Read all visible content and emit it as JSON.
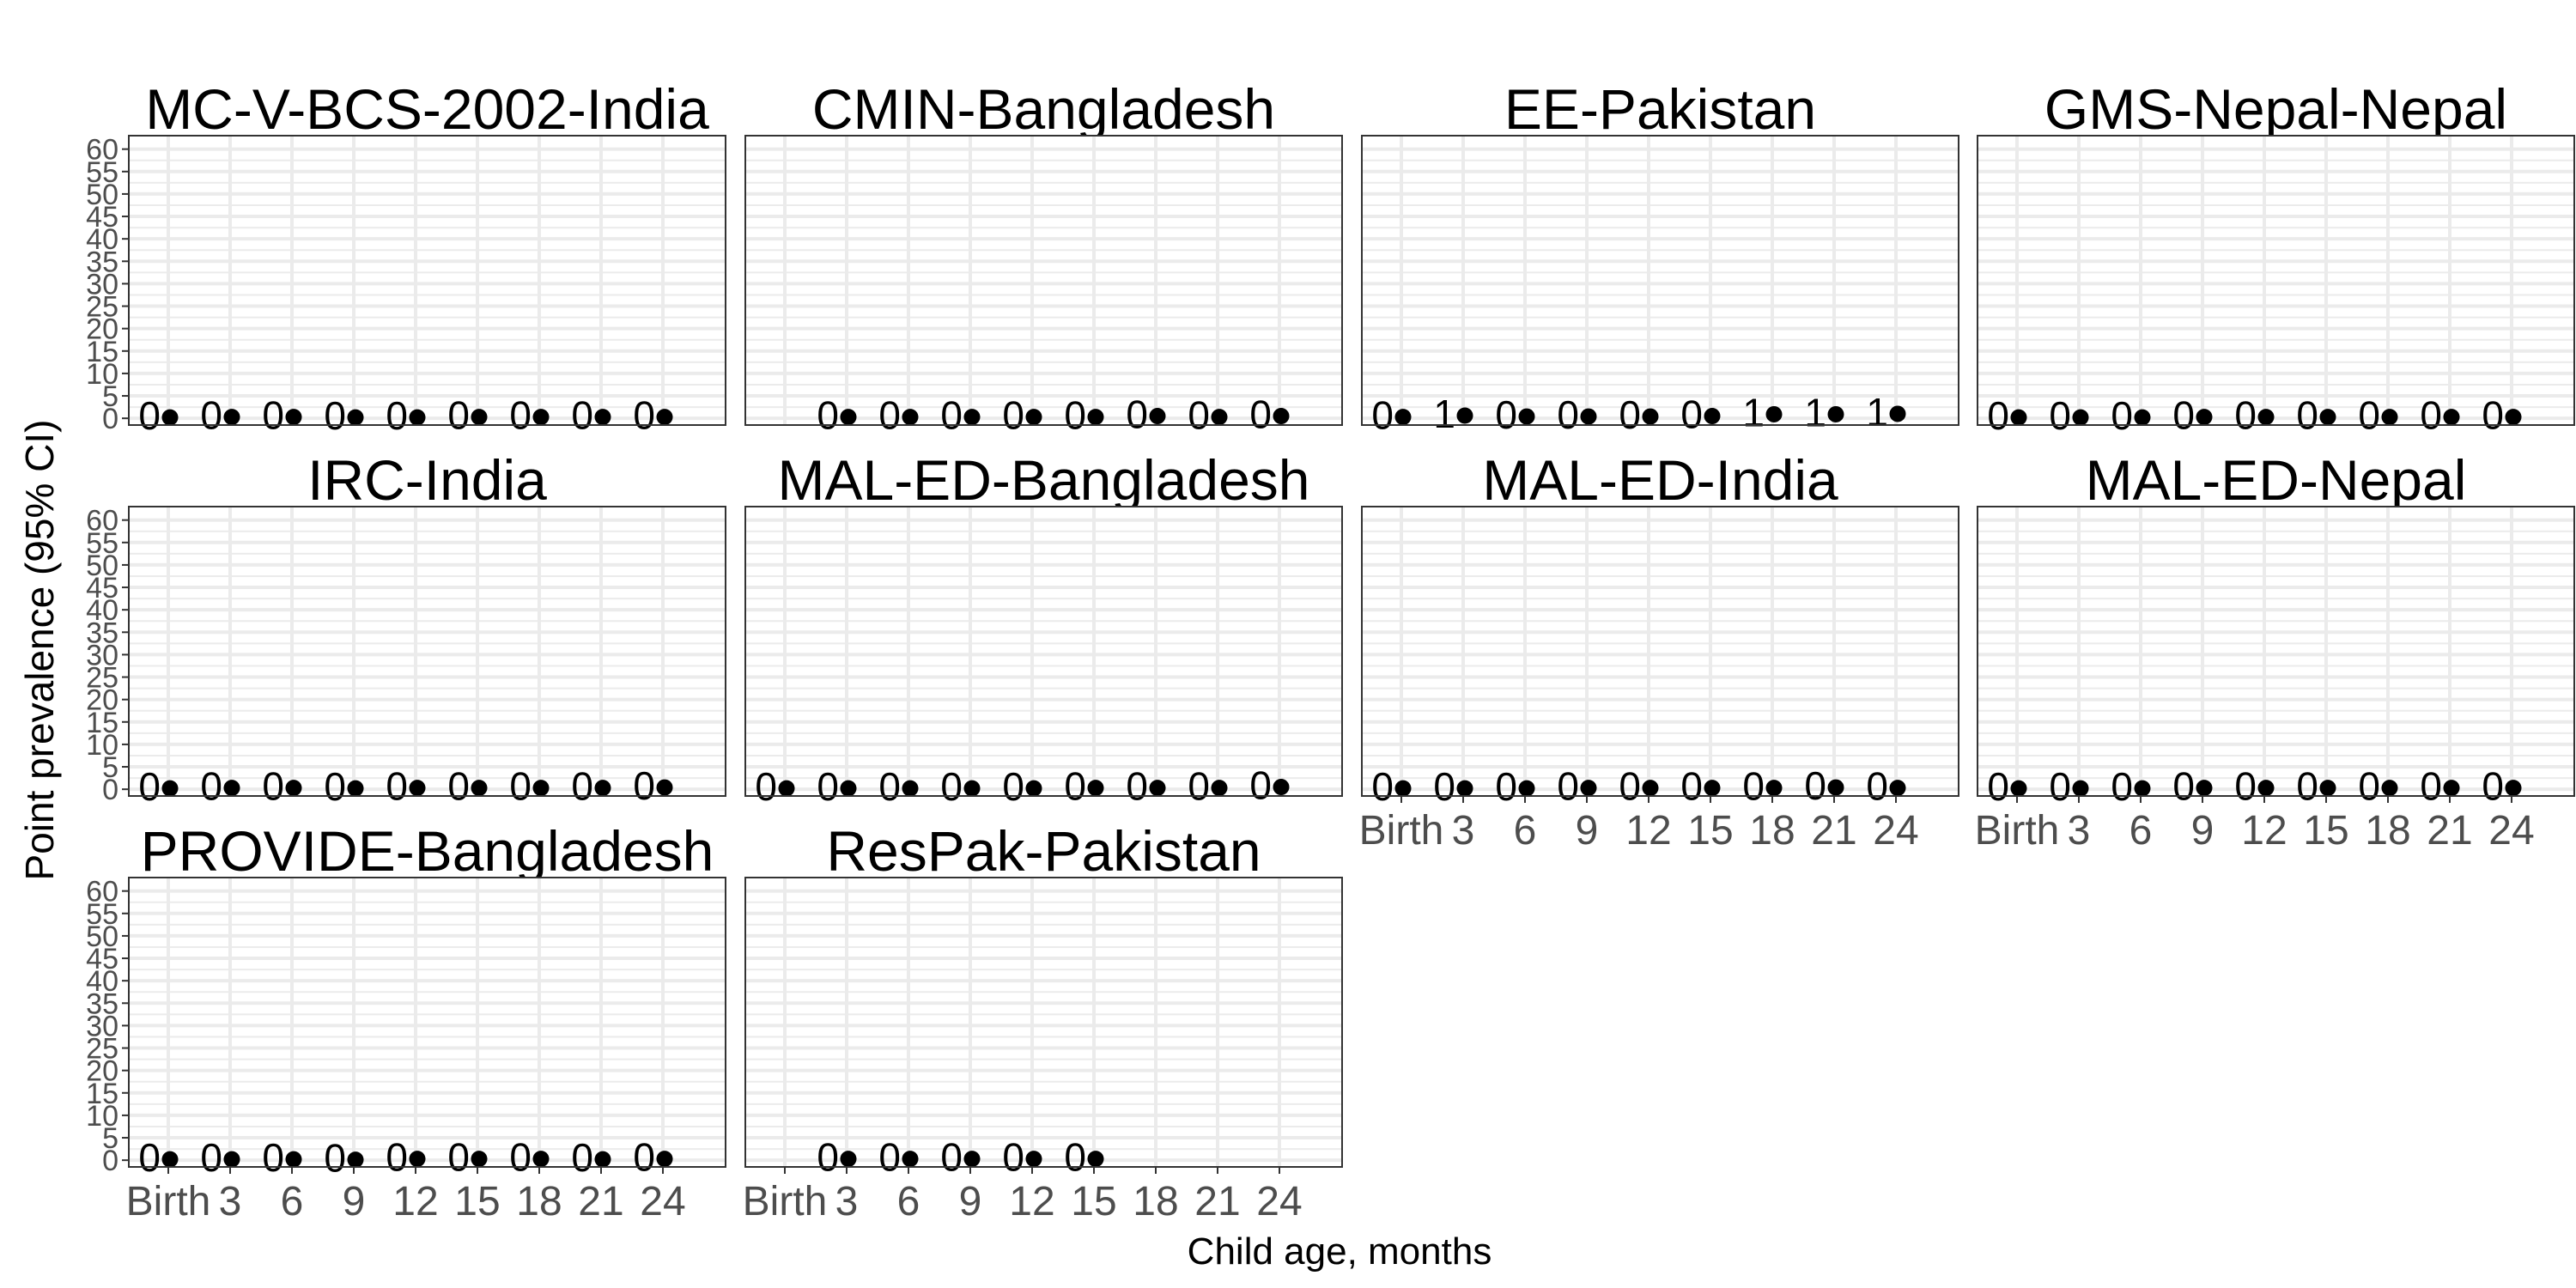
{
  "chart_data": {
    "type": "scatter",
    "xlabel": "Child age, months",
    "ylabel": "Point prevalence (95% CI)",
    "x_categories": [
      "Birth",
      "3",
      "6",
      "9",
      "12",
      "15",
      "18",
      "21",
      "24"
    ],
    "y_ticks": [
      0,
      5,
      10,
      15,
      20,
      25,
      30,
      35,
      40,
      45,
      50,
      55,
      60
    ],
    "ylim": [
      -1.5,
      63
    ],
    "grid": true,
    "legend": "none",
    "colors": {
      "point": "#000000",
      "grid": "#ebebeb",
      "panel_border": "#333333",
      "tick_text": "#4d4d4d"
    },
    "panels": [
      {
        "title": "MC-V-BCS-2002-India",
        "values": [
          0.2,
          0.3,
          0.3,
          0.2,
          0.2,
          0.3,
          0.3,
          0.3,
          0.3
        ],
        "labels": [
          "0",
          "0",
          "0",
          "0",
          "0",
          "0",
          "0",
          "0",
          "0"
        ]
      },
      {
        "title": "CMIN-Bangladesh",
        "values": [
          null,
          0.3,
          0.3,
          0.3,
          0.3,
          0.3,
          0.5,
          0.3,
          0.5
        ],
        "labels": [
          null,
          "0",
          "0",
          "0",
          "0",
          "0",
          "0",
          "0",
          "0"
        ]
      },
      {
        "title": "EE-Pakistan",
        "values": [
          0.3,
          0.6,
          0.4,
          0.4,
          0.4,
          0.5,
          0.9,
          0.9,
          1.0
        ],
        "labels": [
          "0",
          "1",
          "0",
          "0",
          "0",
          "0",
          "1",
          "1",
          "1"
        ]
      },
      {
        "title": "GMS-Nepal-Nepal",
        "values": [
          0.2,
          0.2,
          0.2,
          0.3,
          0.3,
          0.3,
          0.3,
          0.3,
          0.3
        ],
        "labels": [
          "0",
          "0",
          "0",
          "0",
          "0",
          "0",
          "0",
          "0",
          "0"
        ]
      },
      {
        "title": "IRC-India",
        "values": [
          0.2,
          0.3,
          0.3,
          0.2,
          0.3,
          0.3,
          0.3,
          0.3,
          0.4
        ],
        "labels": [
          "0",
          "0",
          "0",
          "0",
          "0",
          "0",
          "0",
          "0",
          "0"
        ]
      },
      {
        "title": "MAL-ED-Bangladesh",
        "values": [
          0.2,
          0.2,
          0.2,
          0.2,
          0.2,
          0.3,
          0.3,
          0.3,
          0.5
        ],
        "labels": [
          "0",
          "0",
          "0",
          "0",
          "0",
          "0",
          "0",
          "0",
          "0"
        ]
      },
      {
        "title": "MAL-ED-India",
        "values": [
          0.2,
          0.2,
          0.2,
          0.3,
          0.3,
          0.3,
          0.3,
          0.4,
          0.3
        ],
        "labels": [
          "0",
          "0",
          "0",
          "0",
          "0",
          "0",
          "0",
          "0",
          "0"
        ]
      },
      {
        "title": "MAL-ED-Nepal",
        "values": [
          0.2,
          0.2,
          0.2,
          0.3,
          0.3,
          0.3,
          0.3,
          0.3,
          0.3
        ],
        "labels": [
          "0",
          "0",
          "0",
          "0",
          "0",
          "0",
          "0",
          "0",
          "0"
        ]
      },
      {
        "title": "PROVIDE-Bangladesh",
        "values": [
          0.2,
          0.2,
          0.2,
          0.1,
          0.3,
          0.3,
          0.3,
          0.2,
          0.3
        ],
        "labels": [
          "0",
          "0",
          "0",
          "0",
          "0",
          "0",
          "0",
          "0",
          "0"
        ]
      },
      {
        "title": "ResPak-Pakistan",
        "values": [
          null,
          0.3,
          0.3,
          0.3,
          0.3,
          0.3,
          null,
          null,
          null
        ],
        "labels": [
          null,
          "0",
          "0",
          "0",
          "0",
          "0",
          null,
          null,
          null
        ]
      }
    ]
  }
}
